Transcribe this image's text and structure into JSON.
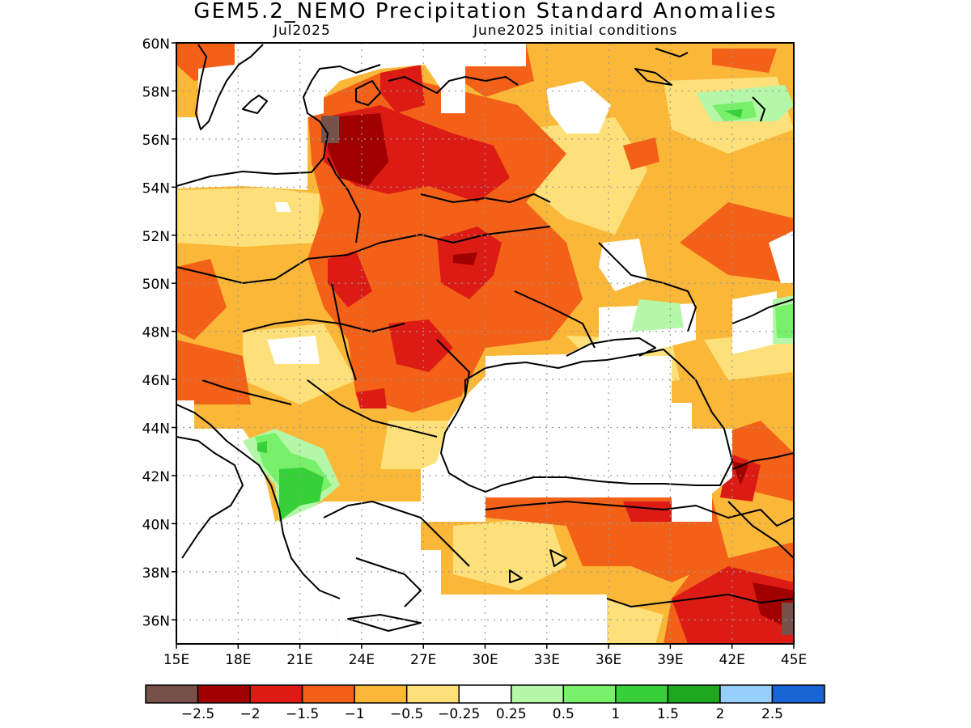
{
  "title": "GEM5.2_NEMO Precipitation Standard Anomalies",
  "subtitle_left": "Jul2025",
  "subtitle_right": "June2025 initial conditions",
  "lat_labels": [
    "60N",
    "58N",
    "56N",
    "54N",
    "52N",
    "50N",
    "48N",
    "46N",
    "44N",
    "42N",
    "40N",
    "38N",
    "36N"
  ],
  "lon_labels": [
    "15E",
    "18E",
    "21E",
    "24E",
    "27E",
    "30E",
    "33E",
    "36E",
    "39E",
    "42E",
    "45E"
  ],
  "colorbar": {
    "colors": [
      "#765149",
      "#a00000",
      "#dc1c14",
      "#f36018",
      "#fbb838",
      "#fde07a",
      "#ffffff",
      "#b4f7a8",
      "#78f06a",
      "#37d038",
      "#1fa81f",
      "#96d0fa",
      "#1764d4"
    ],
    "labels": [
      "−2.5",
      "−2",
      "−1.5",
      "−1",
      "−0.5",
      "−0.25",
      "0.25",
      "0.5",
      "1",
      "1.5",
      "2",
      "2.5"
    ]
  },
  "palette": {
    "p25": "#fbb838",
    "p25l": "#fde07a",
    "m1": "#f36018",
    "m15": "#dc1c14",
    "m2": "#a00000",
    "m25": "#765149",
    "g05": "#b4f7a8",
    "g1": "#78f06a",
    "g15": "#37d038"
  }
}
